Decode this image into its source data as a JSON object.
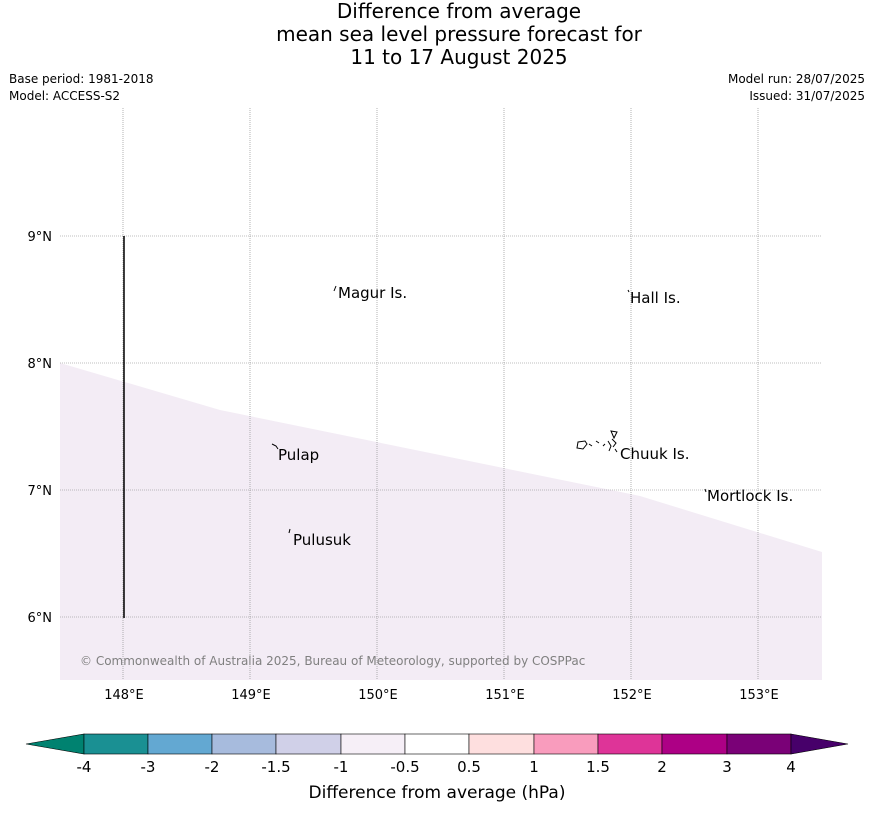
{
  "title": {
    "line1": "Difference from average",
    "line2": "mean sea level pressure forecast for",
    "line3": "11 to 17 August 2025"
  },
  "meta": {
    "base_period": "Base period: 1981-2018",
    "model": "Model: ACCESS-S2",
    "model_run": "Model run: 28/07/2025",
    "issued": "Issued: 31/07/2025"
  },
  "map": {
    "longitude_labels": [
      "148°E",
      "149°E",
      "150°E",
      "151°E",
      "152°E",
      "153°E"
    ],
    "latitude_labels": [
      "9°N",
      "8°N",
      "7°N",
      "6°N"
    ],
    "places": [
      "Magur Is.",
      "Hall Is.",
      "Pulap",
      "Chuuk Is.",
      "Mortlock Is.",
      "Pulusuk"
    ],
    "copyright": "© Commonwealth of Australia 2025, Bureau of Meteorology, supported by COSPPac",
    "shaded_colour": "#f3ecf5",
    "grid_colour": "#808080"
  },
  "colorbar": {
    "title": "Difference from average (hPa)",
    "tick_labels": [
      "-4",
      "-3",
      "-2",
      "-1.5",
      "-1",
      "-0.5",
      "0.5",
      "1",
      "1.5",
      "2",
      "3",
      "4"
    ],
    "colors": [
      "#008270",
      "#1a9093",
      "#63a8d2",
      "#a7bbdd",
      "#d0d0e8",
      "#f6eff7",
      "#ffffff",
      "#fedfdf",
      "#f99cbd",
      "#de3498",
      "#ad0085",
      "#7a0177",
      "#47006a"
    ]
  }
}
